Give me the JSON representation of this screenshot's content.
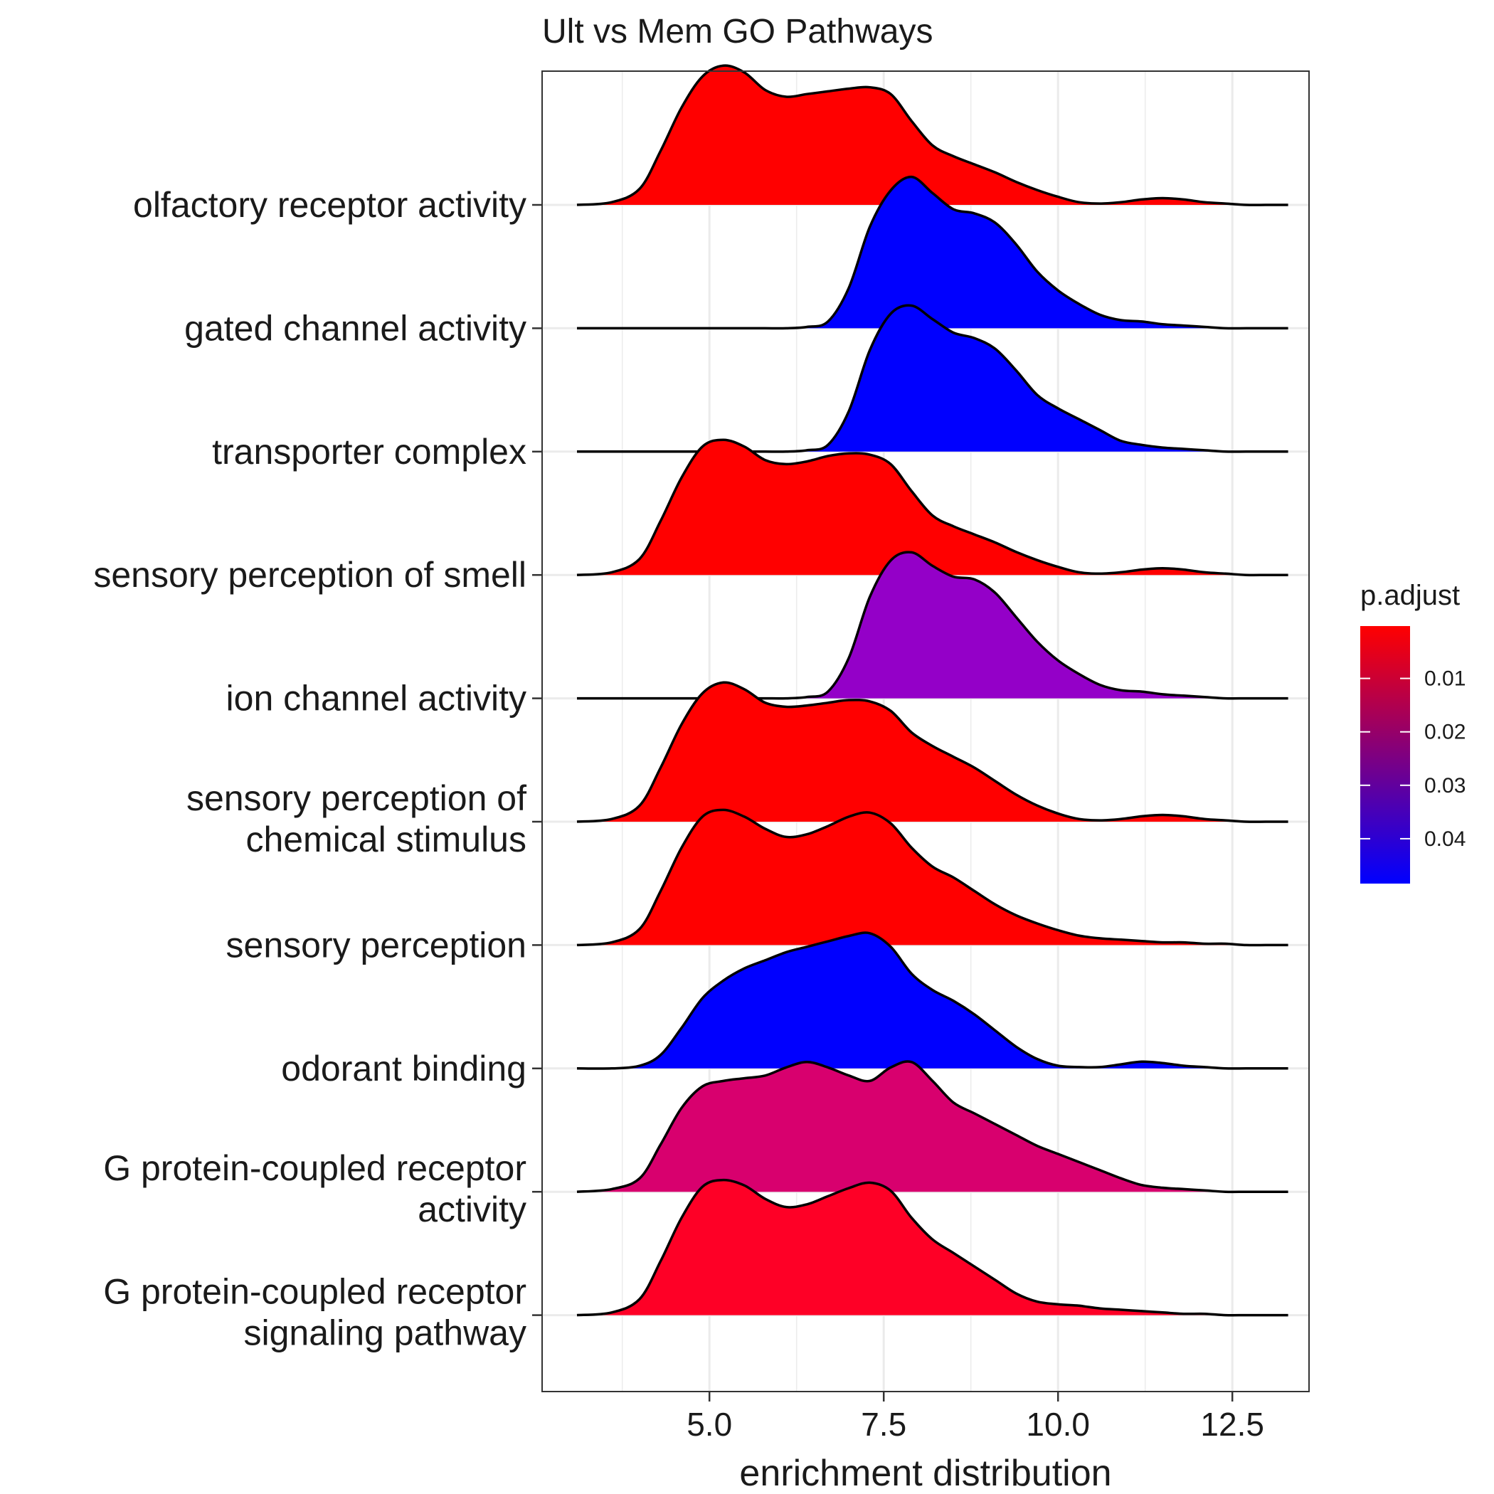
{
  "chart_data": {
    "type": "ridgeline",
    "title": "Ult vs Mem GO Pathways",
    "xlabel": "enrichment distribution",
    "ylabel": "",
    "xlim": [
      2.6,
      13.6
    ],
    "x_ticks": [
      5.0,
      7.5,
      10.0,
      12.5
    ],
    "x_tick_labels": [
      "5.0",
      "7.5",
      "10.0",
      "12.5"
    ],
    "grid": true,
    "x_density": [
      3.1,
      3.6,
      4.0,
      4.3,
      4.6,
      4.9,
      5.2,
      5.5,
      5.8,
      6.1,
      6.4,
      6.7,
      7.0,
      7.3,
      7.6,
      7.9,
      8.2,
      8.5,
      8.8,
      9.1,
      9.4,
      9.7,
      10.0,
      10.3,
      10.6,
      10.9,
      11.2,
      11.5,
      11.8,
      12.1,
      12.4,
      12.7,
      13.0,
      13.3
    ],
    "categories": [
      {
        "label": [
          "olfactory receptor activity"
        ],
        "p_adjust": 0.0008,
        "color": "#ff0000",
        "density": [
          0,
          0.02,
          0.12,
          0.4,
          0.72,
          0.95,
          1.03,
          0.98,
          0.85,
          0.8,
          0.82,
          0.84,
          0.86,
          0.87,
          0.82,
          0.62,
          0.44,
          0.36,
          0.3,
          0.24,
          0.17,
          0.11,
          0.06,
          0.02,
          0.01,
          0.02,
          0.04,
          0.05,
          0.04,
          0.02,
          0.01,
          0,
          0,
          0
        ]
      },
      {
        "label": [
          "gated channel activity"
        ],
        "p_adjust": 0.047,
        "color": "#0000ff",
        "density": [
          0,
          0,
          0,
          0,
          0,
          0,
          0,
          0,
          0,
          0,
          0.01,
          0.05,
          0.3,
          0.75,
          1.02,
          1.12,
          1.0,
          0.88,
          0.85,
          0.78,
          0.62,
          0.42,
          0.28,
          0.18,
          0.1,
          0.06,
          0.05,
          0.03,
          0.02,
          0.01,
          0,
          0,
          0,
          0
        ]
      },
      {
        "label": [
          "transporter complex"
        ],
        "p_adjust": 0.047,
        "color": "#0000ff",
        "density": [
          0,
          0,
          0,
          0,
          0,
          0,
          0,
          0,
          0,
          0,
          0.01,
          0.05,
          0.3,
          0.75,
          1.02,
          1.08,
          0.98,
          0.88,
          0.84,
          0.76,
          0.6,
          0.42,
          0.32,
          0.24,
          0.16,
          0.08,
          0.05,
          0.03,
          0.02,
          0.01,
          0,
          0,
          0,
          0
        ]
      },
      {
        "label": [
          "sensory perception of smell"
        ],
        "p_adjust": 0.0008,
        "color": "#ff0000",
        "density": [
          0,
          0.02,
          0.12,
          0.4,
          0.72,
          0.95,
          1.0,
          0.95,
          0.85,
          0.82,
          0.84,
          0.88,
          0.9,
          0.89,
          0.82,
          0.62,
          0.44,
          0.36,
          0.3,
          0.24,
          0.17,
          0.11,
          0.06,
          0.02,
          0.01,
          0.02,
          0.04,
          0.05,
          0.04,
          0.02,
          0.01,
          0,
          0,
          0
        ]
      },
      {
        "label": [
          "ion channel activity"
        ],
        "p_adjust": 0.039,
        "color": "#9400c8",
        "density": [
          0,
          0,
          0,
          0,
          0,
          0,
          0,
          0,
          0,
          0,
          0.01,
          0.05,
          0.3,
          0.75,
          1.02,
          1.08,
          0.98,
          0.9,
          0.88,
          0.78,
          0.6,
          0.42,
          0.28,
          0.18,
          0.1,
          0.06,
          0.05,
          0.03,
          0.02,
          0.01,
          0,
          0,
          0,
          0
        ]
      },
      {
        "label": [
          "sensory perception of",
          "chemical stimulus"
        ],
        "p_adjust": 0.0008,
        "color": "#ff0000",
        "density": [
          0,
          0.02,
          0.12,
          0.4,
          0.72,
          0.95,
          1.03,
          0.98,
          0.88,
          0.85,
          0.86,
          0.88,
          0.9,
          0.89,
          0.82,
          0.66,
          0.56,
          0.48,
          0.4,
          0.3,
          0.2,
          0.12,
          0.06,
          0.02,
          0.01,
          0.02,
          0.04,
          0.05,
          0.04,
          0.02,
          0.01,
          0,
          0,
          0
        ]
      },
      {
        "label": [
          "sensory perception"
        ],
        "p_adjust": 0.0008,
        "color": "#ff0000",
        "density": [
          0,
          0.02,
          0.12,
          0.4,
          0.72,
          0.95,
          1.0,
          0.95,
          0.86,
          0.8,
          0.82,
          0.88,
          0.95,
          0.98,
          0.9,
          0.72,
          0.58,
          0.5,
          0.4,
          0.3,
          0.22,
          0.16,
          0.11,
          0.07,
          0.05,
          0.04,
          0.03,
          0.02,
          0.02,
          0.01,
          0.01,
          0,
          0,
          0
        ]
      },
      {
        "label": [
          "odorant binding"
        ],
        "p_adjust": 0.047,
        "color": "#0000ff",
        "density": [
          0,
          0,
          0.02,
          0.1,
          0.3,
          0.52,
          0.65,
          0.74,
          0.8,
          0.86,
          0.9,
          0.94,
          0.98,
          1.0,
          0.9,
          0.7,
          0.58,
          0.5,
          0.4,
          0.28,
          0.16,
          0.07,
          0.02,
          0.01,
          0.01,
          0.03,
          0.05,
          0.04,
          0.02,
          0.01,
          0,
          0,
          0,
          0
        ]
      },
      {
        "label": [
          "G protein-coupled receptor",
          "activity"
        ],
        "p_adjust": 0.0245,
        "color": "#d8006e",
        "density": [
          0,
          0.02,
          0.1,
          0.35,
          0.62,
          0.78,
          0.82,
          0.84,
          0.86,
          0.92,
          0.96,
          0.92,
          0.86,
          0.82,
          0.92,
          0.96,
          0.82,
          0.66,
          0.58,
          0.5,
          0.42,
          0.34,
          0.28,
          0.22,
          0.16,
          0.1,
          0.05,
          0.03,
          0.02,
          0.01,
          0,
          0,
          0,
          0
        ]
      },
      {
        "label": [
          "G protein-coupled receptor",
          "signaling pathway"
        ],
        "p_adjust": 0.0045,
        "color": "#fe0026",
        "density": [
          0,
          0.02,
          0.12,
          0.4,
          0.72,
          0.95,
          1.0,
          0.96,
          0.86,
          0.8,
          0.82,
          0.88,
          0.94,
          0.98,
          0.92,
          0.72,
          0.56,
          0.46,
          0.36,
          0.26,
          0.16,
          0.1,
          0.08,
          0.07,
          0.05,
          0.04,
          0.03,
          0.02,
          0.01,
          0.01,
          0,
          0,
          0,
          0
        ]
      }
    ],
    "legend": {
      "title": "p.adjust",
      "placement": "right",
      "range": [
        0.0002,
        0.0484
      ],
      "color_high": "#ff0000",
      "color_low": "#0000ff",
      "ticks": [
        0.01,
        0.02,
        0.03,
        0.04
      ],
      "tick_labels": [
        "0.01",
        "0.02",
        "0.03",
        "0.04"
      ]
    }
  }
}
